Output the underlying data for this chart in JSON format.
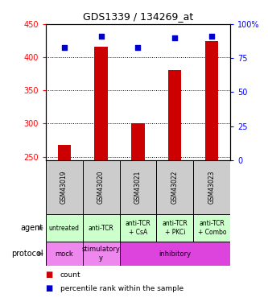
{
  "title": "GDS1339 / 134269_at",
  "samples": [
    "GSM43019",
    "GSM43020",
    "GSM43021",
    "GSM43022",
    "GSM43023"
  ],
  "bar_values": [
    268,
    416,
    301,
    381,
    425
  ],
  "percentile_values": [
    83,
    91,
    83,
    90,
    91
  ],
  "bar_color": "#cc0000",
  "dot_color": "#0000cc",
  "ylim_left": [
    245,
    450
  ],
  "ylim_right": [
    0,
    100
  ],
  "yticks_left": [
    250,
    300,
    350,
    400,
    450
  ],
  "yticks_right": [
    0,
    25,
    50,
    75,
    100
  ],
  "agent_labels": [
    "untreated",
    "anti-TCR",
    "anti-TCR\n+ CsA",
    "anti-TCR\n+ PKCi",
    "anti-TCR\n+ Combo"
  ],
  "agent_bg": "#ccffcc",
  "sample_bg": "#cccccc",
  "protocol_spans": [
    [
      "mock",
      0,
      1,
      "#ee88ee"
    ],
    [
      "stimulatory\ny",
      1,
      2,
      "#ee88ee"
    ],
    [
      "inhibitory",
      2,
      5,
      "#dd44dd"
    ]
  ],
  "legend_count_color": "#cc0000",
  "legend_dot_color": "#0000cc"
}
